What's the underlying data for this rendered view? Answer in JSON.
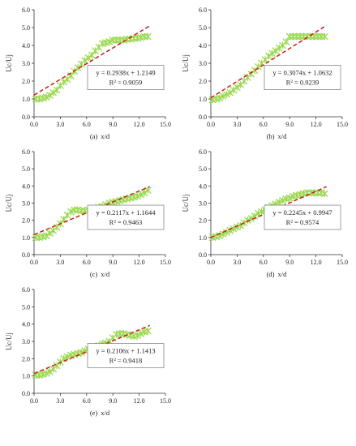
{
  "chart_data": [
    {
      "id": "a",
      "type": "scatter",
      "caption_letter": "(a)",
      "caption_text": "x/d",
      "ylabel": "Uc/Uj",
      "xlim": [
        0,
        15
      ],
      "ylim": [
        0,
        6
      ],
      "xticks": [
        "0.0",
        "3.0",
        "6.0",
        "9.0",
        "12.0",
        "15.0"
      ],
      "yticks": [
        "0.0",
        "1.0",
        "2.0",
        "3.0",
        "4.0",
        "5.0",
        "6.0"
      ],
      "equation": "y = 0.2938x + 1.2149",
      "r2": "R² = 0.9059",
      "trendline": {
        "slope": 0.2938,
        "intercept": 1.2149,
        "x_start": 0,
        "x_end": 13.2
      },
      "series": [
        {
          "x": [
            0.2,
            0.6,
            1.0,
            1.4,
            1.8,
            2.2,
            2.6,
            3.0,
            3.4,
            3.8,
            4.2,
            4.6,
            5.0,
            5.4,
            5.8,
            6.2,
            6.6,
            7.0,
            7.4,
            7.8,
            8.2,
            8.6,
            9.0,
            9.4,
            9.8,
            10.2,
            10.6,
            11.0,
            11.4,
            11.8,
            12.2,
            12.6,
            13.0
          ],
          "y": [
            1.0,
            1.0,
            1.05,
            1.1,
            1.2,
            1.35,
            1.5,
            1.75,
            1.95,
            2.1,
            2.3,
            2.55,
            2.75,
            2.95,
            3.15,
            3.3,
            3.45,
            3.7,
            3.9,
            4.1,
            4.15,
            4.2,
            4.3,
            4.3,
            4.3,
            4.3,
            4.35,
            4.35,
            4.4,
            4.4,
            4.45,
            4.5,
            4.5
          ]
        }
      ]
    },
    {
      "id": "b",
      "type": "scatter",
      "caption_letter": "(b)",
      "caption_text": "x/d",
      "ylabel": "Uc/Uj",
      "xlim": [
        0,
        15
      ],
      "ylim": [
        0,
        6
      ],
      "xticks": [
        "0.0",
        "3.0",
        "6.0",
        "9.0",
        "12.0",
        "15.0"
      ],
      "yticks": [
        "0.0",
        "1.0",
        "2.0",
        "3.0",
        "4.0",
        "5.0",
        "6.0"
      ],
      "equation": "y = 0.3074x + 1.0632",
      "r2": "R² = 0.9239",
      "trendline": {
        "slope": 0.3074,
        "intercept": 1.0632,
        "x_start": 0,
        "x_end": 13.2
      },
      "series": [
        {
          "x": [
            0.2,
            0.6,
            1.0,
            1.4,
            1.8,
            2.2,
            2.6,
            3.0,
            3.4,
            3.8,
            4.2,
            4.6,
            5.0,
            5.4,
            5.8,
            6.2,
            6.6,
            7.0,
            7.4,
            7.8,
            8.2,
            8.6,
            9.0,
            9.4,
            9.8,
            10.2,
            10.6,
            11.0,
            11.4,
            11.8,
            12.2,
            12.6,
            13.0
          ],
          "y": [
            0.95,
            1.0,
            1.05,
            1.15,
            1.25,
            1.35,
            1.5,
            1.65,
            1.8,
            2.0,
            2.2,
            2.4,
            2.6,
            2.8,
            3.0,
            3.2,
            3.4,
            3.55,
            3.7,
            3.85,
            4.0,
            4.2,
            4.5,
            4.5,
            4.5,
            4.5,
            4.5,
            4.5,
            4.5,
            4.5,
            4.5,
            4.5,
            4.5
          ]
        }
      ]
    },
    {
      "id": "c",
      "type": "scatter",
      "caption_letter": "(c)",
      "caption_text": "x/d",
      "ylabel": "Uc/Uj",
      "xlim": [
        0,
        15
      ],
      "ylim": [
        0,
        6
      ],
      "xticks": [
        "0.0",
        "3.0",
        "6.0",
        "9.0",
        "12.0",
        "15.0"
      ],
      "yticks": [
        "0.0",
        "1.0",
        "2.0",
        "3.0",
        "4.0",
        "5.0",
        "6.0"
      ],
      "equation": "y = 0.2117x + 1.1644",
      "r2": "R² = 0.9463",
      "trendline": {
        "slope": 0.2117,
        "intercept": 1.1644,
        "x_start": 0,
        "x_end": 13.2
      },
      "series": [
        {
          "x": [
            0.2,
            0.6,
            1.0,
            1.4,
            1.8,
            2.2,
            2.6,
            3.0,
            3.4,
            3.8,
            4.2,
            4.6,
            5.0,
            5.4,
            5.8,
            6.2,
            6.6,
            7.0,
            7.4,
            7.8,
            8.2,
            8.6,
            9.0,
            9.4,
            9.8,
            10.2,
            10.6,
            11.0,
            11.4,
            11.8,
            12.2,
            12.6,
            13.0
          ],
          "y": [
            1.0,
            1.0,
            1.05,
            1.1,
            1.25,
            1.4,
            1.6,
            1.8,
            2.05,
            2.3,
            2.5,
            2.6,
            2.6,
            2.55,
            2.55,
            2.6,
            2.65,
            2.7,
            2.75,
            2.8,
            2.9,
            3.0,
            3.05,
            3.1,
            3.15,
            3.2,
            3.25,
            3.3,
            3.35,
            3.4,
            3.5,
            3.6,
            3.75
          ]
        }
      ]
    },
    {
      "id": "d",
      "type": "scatter",
      "caption_letter": "(d)",
      "caption_text": "x/d",
      "ylabel": "Uc/Uj",
      "xlim": [
        0,
        15
      ],
      "ylim": [
        0,
        6
      ],
      "xticks": [
        "0.0",
        "3.0",
        "6.0",
        "9.0",
        "12.0",
        "15.0"
      ],
      "yticks": [
        "0.0",
        "1.0",
        "2.0",
        "3.0",
        "4.0",
        "5.0",
        "6.0"
      ],
      "equation": "y = 0.2245x + 0.9947",
      "r2": "R² = 0.9574",
      "trendline": {
        "slope": 0.2245,
        "intercept": 0.9947,
        "x_start": 0,
        "x_end": 13.2
      },
      "series": [
        {
          "x": [
            0.2,
            0.6,
            1.0,
            1.4,
            1.8,
            2.2,
            2.6,
            3.0,
            3.4,
            3.8,
            4.2,
            4.6,
            5.0,
            5.4,
            5.8,
            6.2,
            6.6,
            7.0,
            7.4,
            7.8,
            8.2,
            8.6,
            9.0,
            9.4,
            9.8,
            10.2,
            10.6,
            11.0,
            11.4,
            11.8,
            12.2,
            12.6,
            13.0
          ],
          "y": [
            1.0,
            1.05,
            1.1,
            1.2,
            1.3,
            1.4,
            1.5,
            1.6,
            1.7,
            1.85,
            2.0,
            2.1,
            2.25,
            2.4,
            2.5,
            2.6,
            2.75,
            2.85,
            2.95,
            3.05,
            3.15,
            3.25,
            3.3,
            3.4,
            3.45,
            3.5,
            3.55,
            3.6,
            3.6,
            3.6,
            3.6,
            3.6,
            3.55
          ]
        }
      ]
    },
    {
      "id": "e",
      "type": "scatter",
      "caption_letter": "(e)",
      "caption_text": "x/d",
      "ylabel": "Uc/Uj",
      "xlim": [
        0,
        15
      ],
      "ylim": [
        0,
        6
      ],
      "xticks": [
        "0.0",
        "3.0",
        "6.0",
        "9.0",
        "12.0",
        "15.0"
      ],
      "yticks": [
        "0.0",
        "1.0",
        "2.0",
        "3.0",
        "4.0",
        "5.0",
        "6.0"
      ],
      "equation": "y = 0.2106x + 1.1413",
      "r2": "R² = 0.9418",
      "trendline": {
        "slope": 0.2106,
        "intercept": 1.1413,
        "x_start": 0,
        "x_end": 13.2
      },
      "series": [
        {
          "x": [
            0.2,
            0.6,
            1.0,
            1.4,
            1.8,
            2.2,
            2.6,
            3.0,
            3.4,
            3.8,
            4.2,
            4.6,
            5.0,
            5.4,
            5.8,
            6.2,
            6.6,
            7.0,
            7.4,
            7.8,
            8.2,
            8.6,
            9.0,
            9.4,
            9.8,
            10.2,
            10.6,
            11.0,
            11.4,
            11.8,
            12.2,
            12.6,
            13.0
          ],
          "y": [
            1.05,
            1.05,
            1.1,
            1.15,
            1.25,
            1.4,
            1.6,
            1.8,
            2.0,
            2.1,
            2.2,
            2.25,
            2.3,
            2.35,
            2.45,
            2.55,
            2.6,
            2.7,
            2.75,
            2.85,
            2.9,
            3.0,
            3.2,
            3.4,
            3.45,
            3.45,
            3.4,
            3.35,
            3.3,
            3.35,
            3.45,
            3.55,
            3.6
          ]
        }
      ]
    }
  ],
  "colors": {
    "marker": "#9ad84e",
    "trend": "#cc1a1a",
    "axis": "#333333"
  }
}
